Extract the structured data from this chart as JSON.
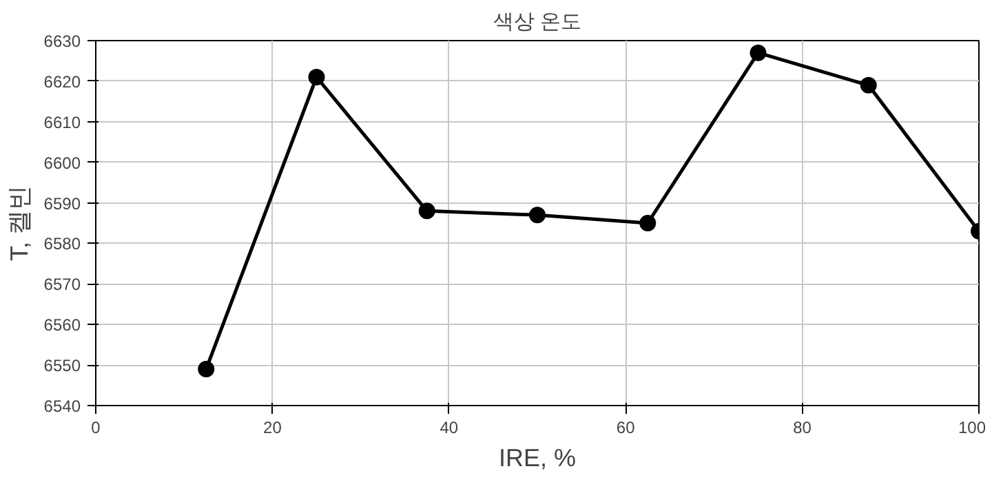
{
  "chart_data": {
    "type": "line",
    "title": "색상 온도",
    "xlabel": "IRE, %",
    "ylabel": "T, 켈빈",
    "x": [
      12.5,
      25,
      37.5,
      50,
      62.5,
      75,
      87.5,
      100
    ],
    "series": [
      {
        "color": "#000000",
        "values": [
          6549,
          6621,
          6588,
          6587,
          6585,
          6627,
          6619,
          6583
        ]
      }
    ],
    "xlim": [
      0,
      100
    ],
    "ylim": [
      6540,
      6630
    ],
    "xticks": [
      0,
      20,
      40,
      60,
      80,
      100
    ],
    "yticks": [
      6540,
      6550,
      6560,
      6570,
      6580,
      6590,
      6600,
      6610,
      6620,
      6630
    ],
    "grid": true,
    "marker": "circle",
    "line_style": "solid"
  }
}
